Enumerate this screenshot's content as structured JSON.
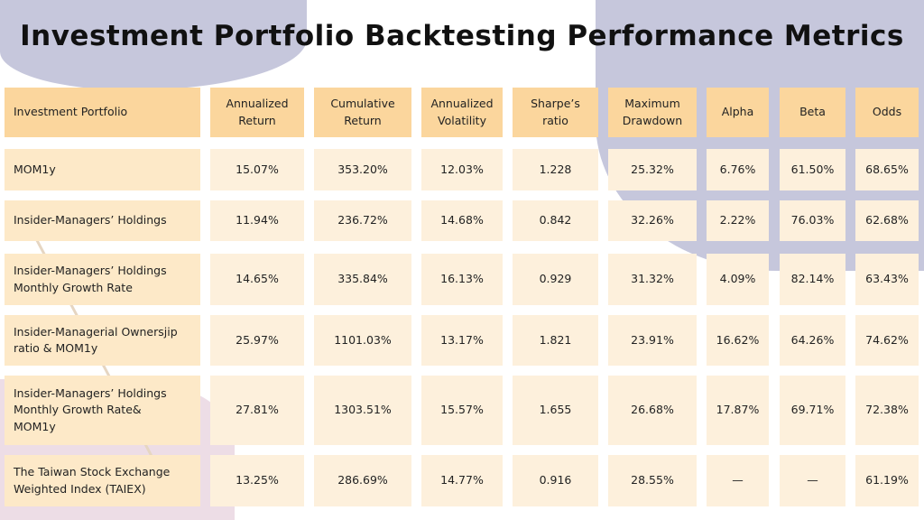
{
  "title": "Investment Portfolio Backtesting Performance Metrics",
  "table": {
    "headers": [
      "Investment Portfolio",
      "Annualized\nReturn",
      "Cumulative\nReturn",
      "Annualized\nVolatility",
      "Sharpe’s\nratio",
      "Maximum\nDrawdown",
      "Alpha",
      "Beta",
      "Odds"
    ],
    "rows": [
      [
        "MOM1y",
        "15.07%",
        "353.20%",
        "12.03%",
        "1.228",
        "25.32%",
        "6.76%",
        "61.50%",
        "68.65%"
      ],
      [
        "Insider-Managers’ Holdings",
        "11.94%",
        "236.72%",
        "14.68%",
        "0.842",
        "32.26%",
        "2.22%",
        "76.03%",
        "62.68%"
      ],
      [
        "Insider-Managers’ Holdings\nMonthly Growth Rate",
        "14.65%",
        "335.84%",
        "16.13%",
        "0.929",
        "31.32%",
        "4.09%",
        "82.14%",
        "63.43%"
      ],
      [
        "Insider-Managerial Ownersjip\nratio & MOM1y",
        "25.97%",
        "1101.03%",
        "13.17%",
        "1.821",
        "23.91%",
        "16.62%",
        "64.26%",
        "74.62%"
      ],
      [
        "Insider-Managers’ Holdings\nMonthly Growth Rate&\nMOM1y",
        "27.81%",
        "1303.51%",
        "15.57%",
        "1.655",
        "26.68%",
        "17.87%",
        "69.71%",
        "72.38%"
      ],
      [
        "The Taiwan Stock Exchange\nWeighted Index (TAIEX)",
        "13.25%",
        "286.69%",
        "14.77%",
        "0.916",
        "28.55%",
        "—",
        "—",
        "61.19%"
      ]
    ]
  },
  "colors": {
    "header": "#fbd69d",
    "cell": "#fdf0dc",
    "background_shape": "#c6c7dc"
  }
}
